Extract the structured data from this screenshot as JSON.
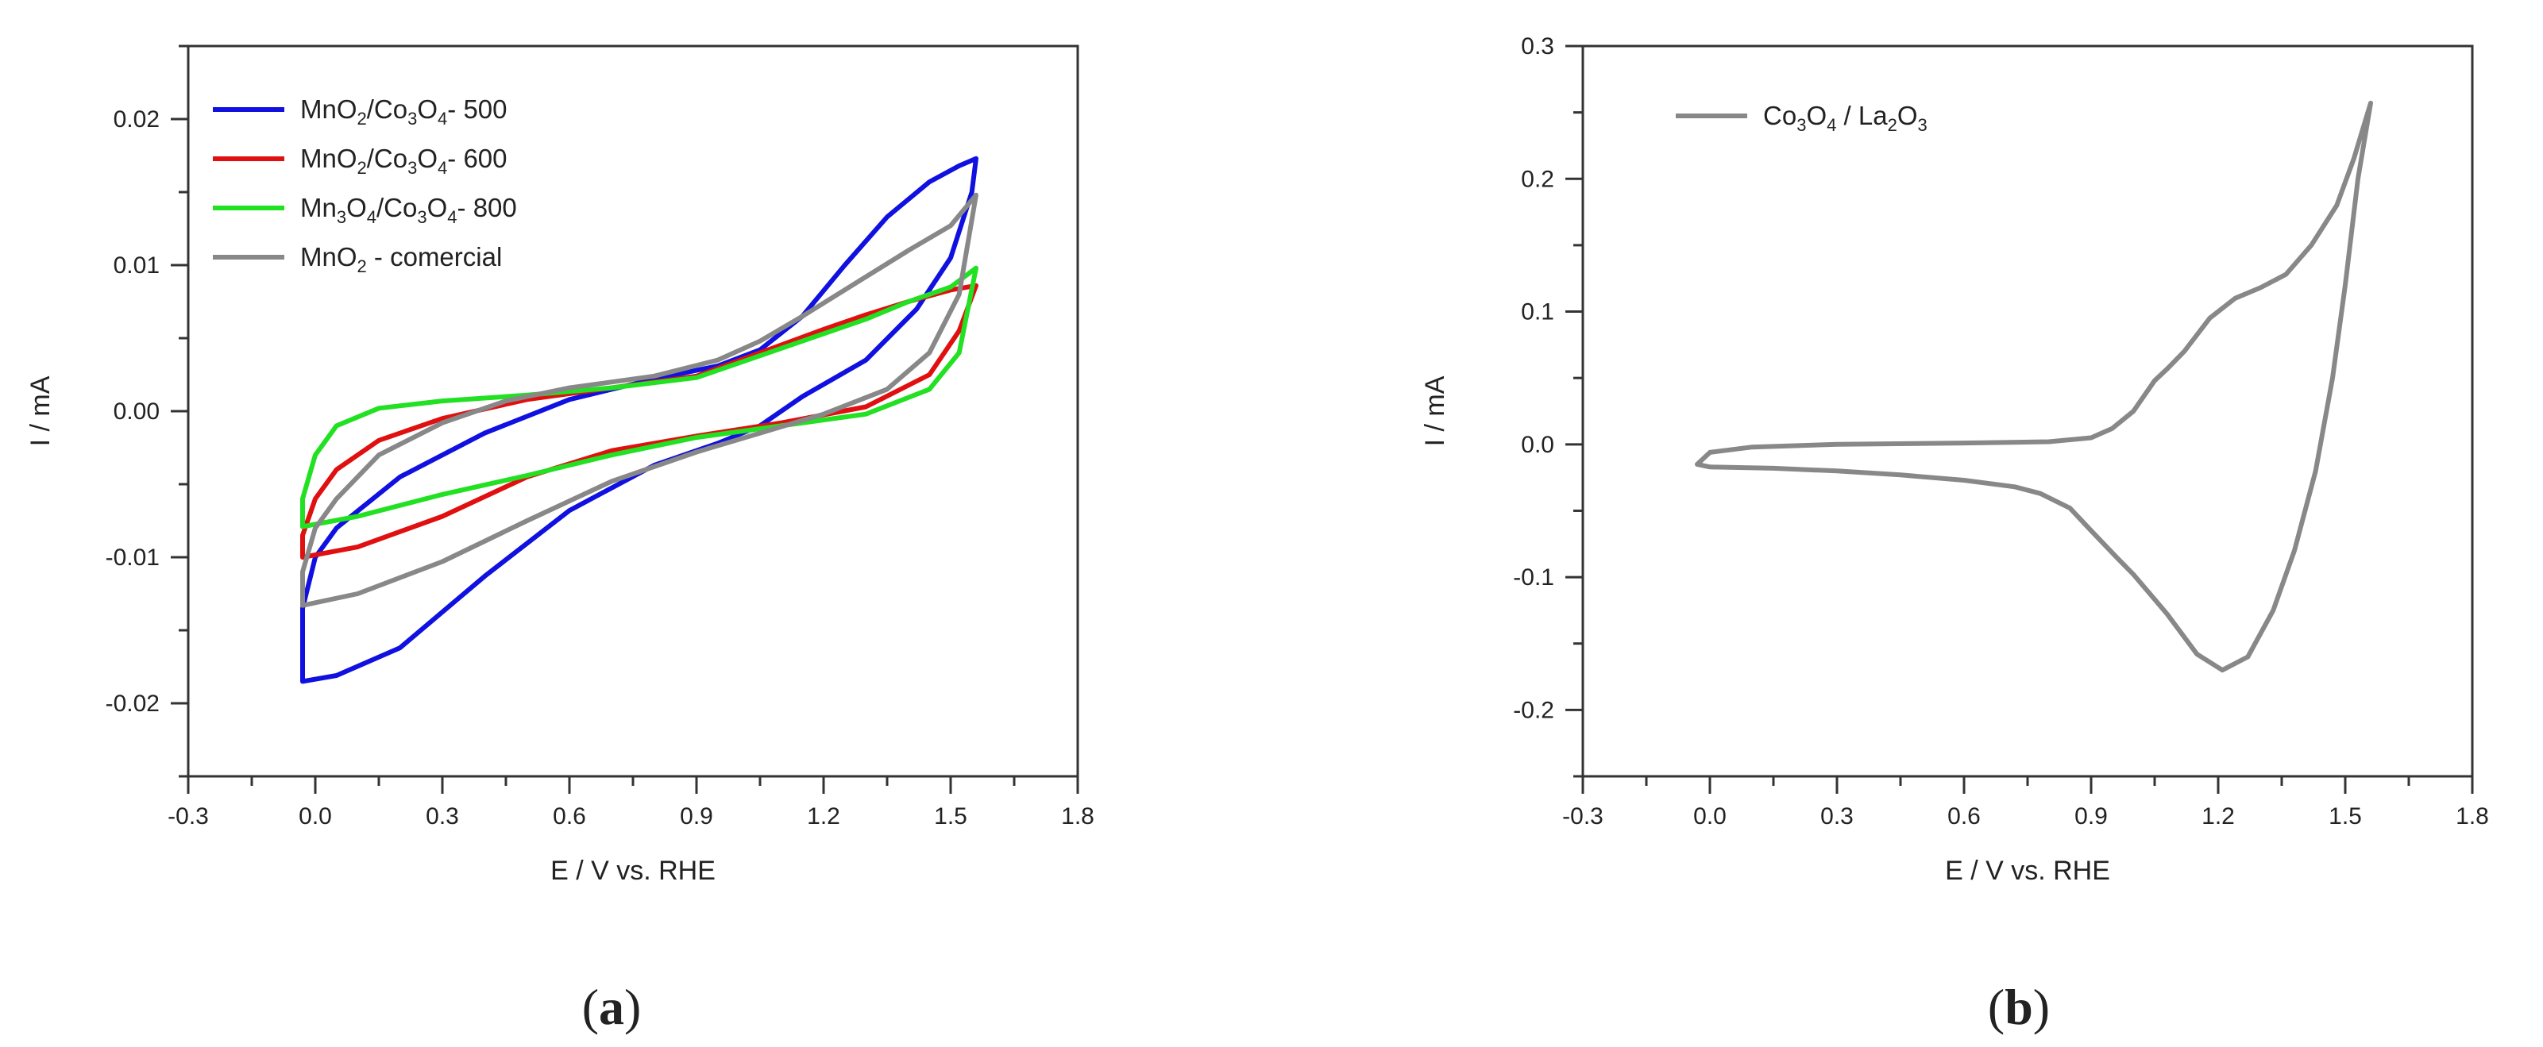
{
  "chart_data": [
    {
      "type": "line",
      "panel_label": "a",
      "xlabel": "E / V vs. RHE",
      "ylabel": "I / mA",
      "xlim": [
        -0.3,
        1.8
      ],
      "ylim": [
        -0.025,
        0.025
      ],
      "xticks": [
        -0.3,
        0.0,
        0.3,
        0.6,
        0.9,
        1.2,
        1.5,
        1.8
      ],
      "xtick_labels": [
        "-0.3",
        "0.0",
        "0.3",
        "0.6",
        "0.9",
        "1.2",
        "1.5",
        "1.8"
      ],
      "yticks": [
        -0.02,
        -0.01,
        0.0,
        0.01,
        0.02
      ],
      "ytick_labels": [
        "-0.02",
        "-0.01",
        "0.00",
        "0.01",
        "0.02"
      ],
      "legend_position": "top-left",
      "series": [
        {
          "legend_parts": [
            [
              "MnO",
              ""
            ],
            [
              "2",
              "sub"
            ],
            [
              "/Co",
              ""
            ],
            [
              "3",
              "sub"
            ],
            [
              "O",
              ""
            ],
            [
              "4",
              "sub"
            ],
            [
              "- 500",
              ""
            ]
          ],
          "color": "#1010e0",
          "points": [
            [
              -0.03,
              -0.0185
            ],
            [
              0.05,
              -0.0181
            ],
            [
              0.2,
              -0.0162
            ],
            [
              0.4,
              -0.0113
            ],
            [
              0.6,
              -0.0068
            ],
            [
              0.8,
              -0.0037
            ],
            [
              0.95,
              -0.0022
            ],
            [
              1.05,
              -0.001
            ],
            [
              1.15,
              0.001
            ],
            [
              1.3,
              0.0035
            ],
            [
              1.42,
              0.007
            ],
            [
              1.5,
              0.0105
            ],
            [
              1.55,
              0.015
            ],
            [
              1.56,
              0.0173
            ],
            [
              1.52,
              0.0168
            ],
            [
              1.45,
              0.0157
            ],
            [
              1.35,
              0.0133
            ],
            [
              1.25,
              0.01
            ],
            [
              1.15,
              0.0065
            ],
            [
              1.05,
              0.0042
            ],
            [
              0.95,
              0.0031
            ],
            [
              0.8,
              0.0022
            ],
            [
              0.6,
              0.0008
            ],
            [
              0.4,
              -0.0015
            ],
            [
              0.2,
              -0.0045
            ],
            [
              0.05,
              -0.008
            ],
            [
              0.0,
              -0.01
            ],
            [
              -0.03,
              -0.0135
            ],
            [
              -0.03,
              -0.0185
            ]
          ]
        },
        {
          "legend_parts": [
            [
              "MnO",
              ""
            ],
            [
              "2",
              "sub"
            ],
            [
              "/Co",
              ""
            ],
            [
              "3",
              "sub"
            ],
            [
              "O",
              ""
            ],
            [
              "4",
              "sub"
            ],
            [
              "- 600",
              ""
            ]
          ],
          "color": "#e01010",
          "points": [
            [
              -0.03,
              -0.01
            ],
            [
              0.1,
              -0.0093
            ],
            [
              0.3,
              -0.0072
            ],
            [
              0.5,
              -0.0045
            ],
            [
              0.7,
              -0.0027
            ],
            [
              0.9,
              -0.0017
            ],
            [
              1.1,
              -0.0008
            ],
            [
              1.3,
              0.0003
            ],
            [
              1.45,
              0.0025
            ],
            [
              1.52,
              0.0055
            ],
            [
              1.56,
              0.0086
            ],
            [
              1.5,
              0.0083
            ],
            [
              1.4,
              0.0075
            ],
            [
              1.3,
              0.0066
            ],
            [
              1.2,
              0.0056
            ],
            [
              1.05,
              0.004
            ],
            [
              0.9,
              0.0024
            ],
            [
              0.7,
              0.0016
            ],
            [
              0.5,
              0.0008
            ],
            [
              0.3,
              -0.0005
            ],
            [
              0.15,
              -0.002
            ],
            [
              0.05,
              -0.004
            ],
            [
              0.0,
              -0.006
            ],
            [
              -0.03,
              -0.0085
            ],
            [
              -0.03,
              -0.01
            ]
          ]
        },
        {
          "legend_parts": [
            [
              "Mn",
              ""
            ],
            [
              "3",
              "sub"
            ],
            [
              "O",
              ""
            ],
            [
              "4",
              "sub"
            ],
            [
              "/Co",
              ""
            ],
            [
              "3",
              "sub"
            ],
            [
              "O",
              ""
            ],
            [
              "4",
              "sub"
            ],
            [
              "- 800",
              ""
            ]
          ],
          "color": "#22e022",
          "points": [
            [
              -0.03,
              -0.0079
            ],
            [
              0.1,
              -0.0072
            ],
            [
              0.3,
              -0.0057
            ],
            [
              0.5,
              -0.0044
            ],
            [
              0.7,
              -0.003
            ],
            [
              0.9,
              -0.0018
            ],
            [
              1.1,
              -0.001
            ],
            [
              1.3,
              -0.0002
            ],
            [
              1.45,
              0.0015
            ],
            [
              1.52,
              0.004
            ],
            [
              1.56,
              0.0098
            ],
            [
              1.5,
              0.0085
            ],
            [
              1.4,
              0.0075
            ],
            [
              1.3,
              0.0063
            ],
            [
              1.15,
              0.0048
            ],
            [
              1.0,
              0.0033
            ],
            [
              0.9,
              0.0023
            ],
            [
              0.7,
              0.0016
            ],
            [
              0.5,
              0.0011
            ],
            [
              0.3,
              0.0007
            ],
            [
              0.15,
              0.0002
            ],
            [
              0.05,
              -0.001
            ],
            [
              0.0,
              -0.003
            ],
            [
              -0.03,
              -0.006
            ],
            [
              -0.03,
              -0.0079
            ]
          ]
        },
        {
          "legend_parts": [
            [
              "MnO",
              ""
            ],
            [
              "2",
              "sub"
            ],
            [
              " - comercial",
              ""
            ]
          ],
          "color": "#888888",
          "points": [
            [
              -0.03,
              -0.0133
            ],
            [
              0.1,
              -0.0125
            ],
            [
              0.3,
              -0.0103
            ],
            [
              0.5,
              -0.0075
            ],
            [
              0.7,
              -0.0048
            ],
            [
              0.9,
              -0.0028
            ],
            [
              1.05,
              -0.0015
            ],
            [
              1.2,
              -0.0002
            ],
            [
              1.35,
              0.0015
            ],
            [
              1.45,
              0.004
            ],
            [
              1.52,
              0.008
            ],
            [
              1.56,
              0.0148
            ],
            [
              1.5,
              0.0127
            ],
            [
              1.4,
              0.011
            ],
            [
              1.3,
              0.0092
            ],
            [
              1.15,
              0.0065
            ],
            [
              1.05,
              0.0048
            ],
            [
              0.95,
              0.0035
            ],
            [
              0.8,
              0.0024
            ],
            [
              0.6,
              0.0016
            ],
            [
              0.45,
              0.0007
            ],
            [
              0.3,
              -0.0008
            ],
            [
              0.15,
              -0.003
            ],
            [
              0.05,
              -0.006
            ],
            [
              0.0,
              -0.008
            ],
            [
              -0.03,
              -0.011
            ],
            [
              -0.03,
              -0.0133
            ]
          ]
        }
      ]
    },
    {
      "type": "line",
      "panel_label": "b",
      "xlabel": "E / V vs. RHE",
      "ylabel": "I / mA",
      "xlim": [
        -0.3,
        1.8
      ],
      "ylim": [
        -0.25,
        0.3
      ],
      "xticks": [
        -0.3,
        0.0,
        0.3,
        0.6,
        0.9,
        1.2,
        1.5,
        1.8
      ],
      "xtick_labels": [
        "-0.3",
        "0.0",
        "0.3",
        "0.6",
        "0.9",
        "1.2",
        "1.5",
        "1.8"
      ],
      "yticks": [
        -0.2,
        -0.1,
        0.0,
        0.1,
        0.2,
        0.3
      ],
      "ytick_labels": [
        "-0.2",
        "-0.1",
        "0.0",
        "0.1",
        "0.2",
        "0.3"
      ],
      "legend_position": "top-left",
      "series": [
        {
          "legend_parts": [
            [
              "Co",
              ""
            ],
            [
              "3",
              "sub"
            ],
            [
              "O",
              ""
            ],
            [
              "4",
              "sub"
            ],
            [
              " / La",
              ""
            ],
            [
              "2",
              "sub"
            ],
            [
              "O",
              ""
            ],
            [
              "3",
              "sub"
            ]
          ],
          "color": "#888888",
          "points": [
            [
              -0.03,
              -0.015
            ],
            [
              0.0,
              -0.006
            ],
            [
              0.1,
              -0.002
            ],
            [
              0.3,
              0.0
            ],
            [
              0.6,
              0.001
            ],
            [
              0.8,
              0.002
            ],
            [
              0.9,
              0.005
            ],
            [
              0.95,
              0.012
            ],
            [
              1.0,
              0.025
            ],
            [
              1.05,
              0.048
            ],
            [
              1.08,
              0.057
            ],
            [
              1.12,
              0.07
            ],
            [
              1.18,
              0.095
            ],
            [
              1.24,
              0.11
            ],
            [
              1.3,
              0.118
            ],
            [
              1.36,
              0.128
            ],
            [
              1.42,
              0.15
            ],
            [
              1.48,
              0.18
            ],
            [
              1.52,
              0.215
            ],
            [
              1.56,
              0.257
            ],
            [
              1.53,
              0.2
            ],
            [
              1.5,
              0.12
            ],
            [
              1.47,
              0.05
            ],
            [
              1.43,
              -0.02
            ],
            [
              1.38,
              -0.08
            ],
            [
              1.33,
              -0.125
            ],
            [
              1.27,
              -0.16
            ],
            [
              1.21,
              -0.17
            ],
            [
              1.15,
              -0.158
            ],
            [
              1.08,
              -0.128
            ],
            [
              1.04,
              -0.113
            ],
            [
              1.0,
              -0.098
            ],
            [
              0.96,
              -0.085
            ],
            [
              0.9,
              -0.065
            ],
            [
              0.85,
              -0.048
            ],
            [
              0.78,
              -0.037
            ],
            [
              0.72,
              -0.032
            ],
            [
              0.6,
              -0.027
            ],
            [
              0.45,
              -0.023
            ],
            [
              0.3,
              -0.02
            ],
            [
              0.15,
              -0.018
            ],
            [
              0.0,
              -0.017
            ],
            [
              -0.03,
              -0.015
            ]
          ]
        }
      ]
    }
  ]
}
